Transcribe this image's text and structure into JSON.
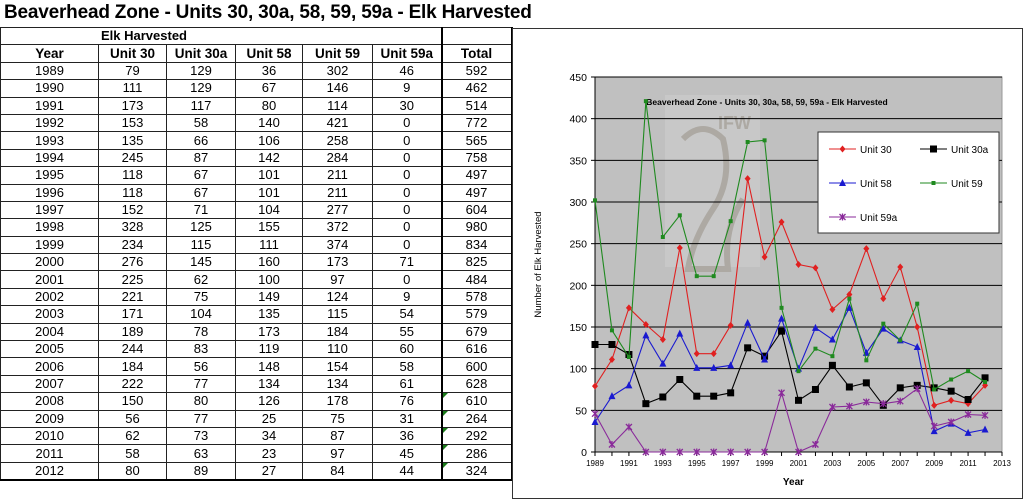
{
  "page": {
    "title": "Beaverhead Zone - Units 30, 30a, 58, 59, 59a - Elk Harvested"
  },
  "table": {
    "group_header": "Elk Harvested",
    "columns": [
      "Year",
      "Unit 30",
      "Unit 30a",
      "Unit 58",
      "Unit 59",
      "Unit 59a",
      "Total"
    ],
    "rows": [
      [
        "1989",
        "79",
        "129",
        "36",
        "302",
        "46",
        "592"
      ],
      [
        "1990",
        "111",
        "129",
        "67",
        "146",
        "9",
        "462"
      ],
      [
        "1991",
        "173",
        "117",
        "80",
        "114",
        "30",
        "514"
      ],
      [
        "1992",
        "153",
        "58",
        "140",
        "421",
        "0",
        "772"
      ],
      [
        "1993",
        "135",
        "66",
        "106",
        "258",
        "0",
        "565"
      ],
      [
        "1994",
        "245",
        "87",
        "142",
        "284",
        "0",
        "758"
      ],
      [
        "1995",
        "118",
        "67",
        "101",
        "211",
        "0",
        "497"
      ],
      [
        "1996",
        "118",
        "67",
        "101",
        "211",
        "0",
        "497"
      ],
      [
        "1997",
        "152",
        "71",
        "104",
        "277",
        "0",
        "604"
      ],
      [
        "1998",
        "328",
        "125",
        "155",
        "372",
        "0",
        "980"
      ],
      [
        "1999",
        "234",
        "115",
        "111",
        "374",
        "0",
        "834"
      ],
      [
        "2000",
        "276",
        "145",
        "160",
        "173",
        "71",
        "825"
      ],
      [
        "2001",
        "225",
        "62",
        "100",
        "97",
        "0",
        "484"
      ],
      [
        "2002",
        "221",
        "75",
        "149",
        "124",
        "9",
        "578"
      ],
      [
        "2003",
        "171",
        "104",
        "135",
        "115",
        "54",
        "579"
      ],
      [
        "2004",
        "189",
        "78",
        "173",
        "184",
        "55",
        "679"
      ],
      [
        "2005",
        "244",
        "83",
        "119",
        "110",
        "60",
        "616"
      ],
      [
        "2006",
        "184",
        "56",
        "148",
        "154",
        "58",
        "600"
      ],
      [
        "2007",
        "222",
        "77",
        "134",
        "134",
        "61",
        "628"
      ],
      [
        "2008",
        "150",
        "80",
        "126",
        "178",
        "76",
        "610"
      ],
      [
        "2009",
        "56",
        "77",
        "25",
        "75",
        "31",
        "264"
      ],
      [
        "2010",
        "62",
        "73",
        "34",
        "87",
        "36",
        "292"
      ],
      [
        "2011",
        "58",
        "63",
        "23",
        "97",
        "45",
        "286"
      ],
      [
        "2012",
        "80",
        "89",
        "27",
        "84",
        "44",
        "324"
      ]
    ],
    "flagged_total_rows": [
      19,
      20,
      21,
      22,
      23
    ]
  },
  "chart_data": {
    "type": "line",
    "title": "Beaverhead Zone - Units 30, 30a, 58, 59, 59a - Elk Harvested",
    "xlabel": "Year",
    "ylabel": "Number of Elk Harvested",
    "x": [
      1989,
      1990,
      1991,
      1992,
      1993,
      1994,
      1995,
      1996,
      1997,
      1998,
      1999,
      2000,
      2001,
      2002,
      2003,
      2004,
      2005,
      2006,
      2007,
      2008,
      2009,
      2010,
      2011,
      2012
    ],
    "xlim": [
      1989,
      2013
    ],
    "ylim": [
      0,
      450
    ],
    "x_ticks": [
      "1989",
      "1991",
      "1993",
      "1995",
      "1997",
      "1999",
      "2001",
      "2003",
      "2005",
      "2007",
      "2009",
      "2011",
      "2013"
    ],
    "y_ticks": [
      "0",
      "50",
      "100",
      "150",
      "200",
      "250",
      "300",
      "350",
      "400",
      "450"
    ],
    "grid": true,
    "legend_position": "upper right (inside plot)",
    "plot_background": "#c0c0c0",
    "watermark": "IFW logo (faded)",
    "series": [
      {
        "name": "Unit 30",
        "color": "#e02020",
        "marker": "diamond",
        "values": [
          79,
          111,
          173,
          153,
          135,
          245,
          118,
          118,
          152,
          328,
          234,
          276,
          225,
          221,
          171,
          189,
          244,
          184,
          222,
          150,
          56,
          62,
          58,
          80
        ]
      },
      {
        "name": "Unit 30a",
        "color": "#000000",
        "marker": "square",
        "values": [
          129,
          129,
          117,
          58,
          66,
          87,
          67,
          67,
          71,
          125,
          115,
          145,
          62,
          75,
          104,
          78,
          83,
          56,
          77,
          80,
          77,
          73,
          63,
          89
        ]
      },
      {
        "name": "Unit 58",
        "color": "#1a1ad0",
        "marker": "triangle",
        "values": [
          36,
          67,
          80,
          140,
          106,
          142,
          101,
          101,
          104,
          155,
          111,
          160,
          100,
          149,
          135,
          173,
          119,
          148,
          134,
          126,
          25,
          34,
          23,
          27
        ]
      },
      {
        "name": "Unit 59",
        "color": "#1f8a1f",
        "marker": "dot",
        "values": [
          302,
          146,
          114,
          421,
          258,
          284,
          211,
          211,
          277,
          372,
          374,
          173,
          97,
          124,
          115,
          184,
          110,
          154,
          134,
          178,
          75,
          87,
          97,
          84
        ]
      },
      {
        "name": "Unit 59a",
        "color": "#8a2a9a",
        "marker": "star",
        "values": [
          46,
          9,
          30,
          0,
          0,
          0,
          0,
          0,
          0,
          0,
          0,
          71,
          0,
          9,
          54,
          55,
          60,
          58,
          61,
          76,
          31,
          36,
          45,
          44
        ]
      }
    ]
  }
}
